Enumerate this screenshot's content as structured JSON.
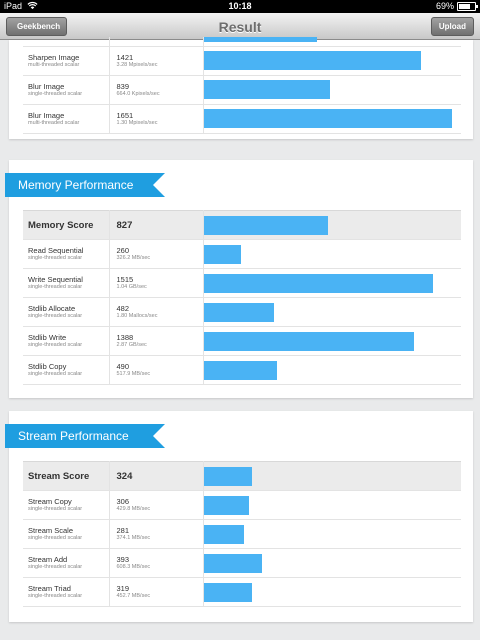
{
  "status": {
    "carrier": "iPad",
    "time": "10:18",
    "battery": "69%"
  },
  "nav": {
    "back_label": "Geekbench",
    "title": "Result",
    "upload_label": "Upload"
  },
  "colors": {
    "ribbon": "#1f9ee0",
    "bar": "#4ab3f4"
  },
  "top_section": {
    "rows": [
      {
        "name": "Sharpen Image",
        "sub": "multi-threaded scalar",
        "score": "1421",
        "unit": "3.28 Mpixels/sec",
        "fraction": 0.873
      },
      {
        "name": "Blur Image",
        "sub": "single-threaded scalar",
        "score": "839",
        "unit": "664.0 Kpixels/sec",
        "fraction": 0.51
      },
      {
        "name": "Blur Image",
        "sub": "multi-threaded scalar",
        "score": "1651",
        "unit": "1.30 Mpixels/sec",
        "fraction": 1.0
      }
    ]
  },
  "memory": {
    "title": "Memory Performance",
    "score_label": "Memory Score",
    "score": "827",
    "score_fraction": 0.502,
    "rows": [
      {
        "name": "Read Sequential",
        "sub": "single-threaded scalar",
        "score": "260",
        "unit": "326.2 MB/sec",
        "fraction": 0.15
      },
      {
        "name": "Write Sequential",
        "sub": "single-threaded scalar",
        "score": "1515",
        "unit": "1.04 GB/sec",
        "fraction": 0.922
      },
      {
        "name": "Stdlib Allocate",
        "sub": "single-threaded scalar",
        "score": "482",
        "unit": "1.80 Mallocs/sec",
        "fraction": 0.284
      },
      {
        "name": "Stdlib Write",
        "sub": "single-threaded scalar",
        "score": "1388",
        "unit": "2.87 GB/sec",
        "fraction": 0.845
      },
      {
        "name": "Stdlib Copy",
        "sub": "single-threaded scalar",
        "score": "490",
        "unit": "517.9 MB/sec",
        "fraction": 0.296
      }
    ]
  },
  "stream": {
    "title": "Stream Performance",
    "score_label": "Stream Score",
    "score": "324",
    "score_fraction": 0.192,
    "rows": [
      {
        "name": "Stream Copy",
        "sub": "single-threaded scalar",
        "score": "306",
        "unit": "429.8 MB/sec",
        "fraction": 0.18
      },
      {
        "name": "Stream Scale",
        "sub": "single-threaded scalar",
        "score": "281",
        "unit": "374.1 MB/sec",
        "fraction": 0.163
      },
      {
        "name": "Stream Add",
        "sub": "single-threaded scalar",
        "score": "393",
        "unit": "608.3 MB/sec",
        "fraction": 0.235
      },
      {
        "name": "Stream Triad",
        "sub": "single-threaded scalar",
        "score": "319",
        "unit": "452.7 MB/sec",
        "fraction": 0.192
      }
    ]
  }
}
